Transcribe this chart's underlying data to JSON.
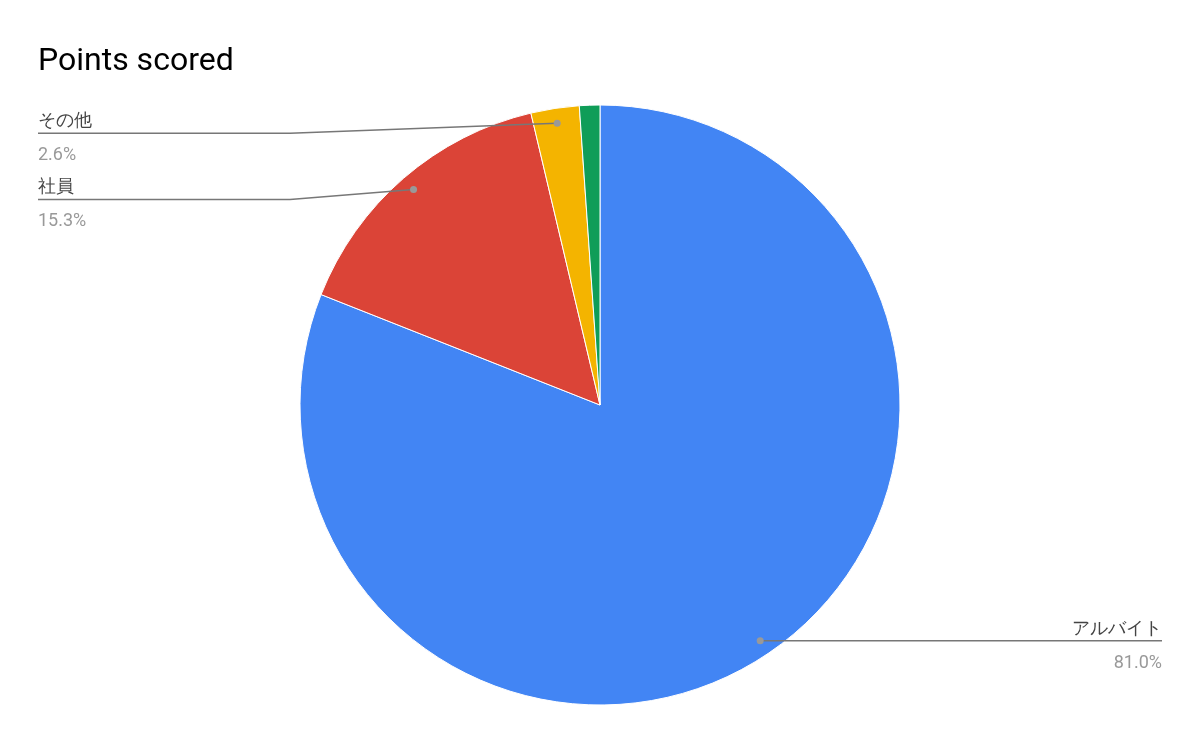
{
  "chart_data": {
    "type": "pie",
    "title": "Points scored",
    "categories": [
      "アルバイト",
      "社員",
      "その他",
      null
    ],
    "values": [
      81.0,
      15.3,
      2.6,
      1.1
    ],
    "value_labels": [
      "81.0%",
      "15.3%",
      "2.6%",
      null
    ],
    "colors": [
      "#4285f4",
      "#db4437",
      "#f4b400",
      "#0f9d58"
    ],
    "legend": false
  }
}
